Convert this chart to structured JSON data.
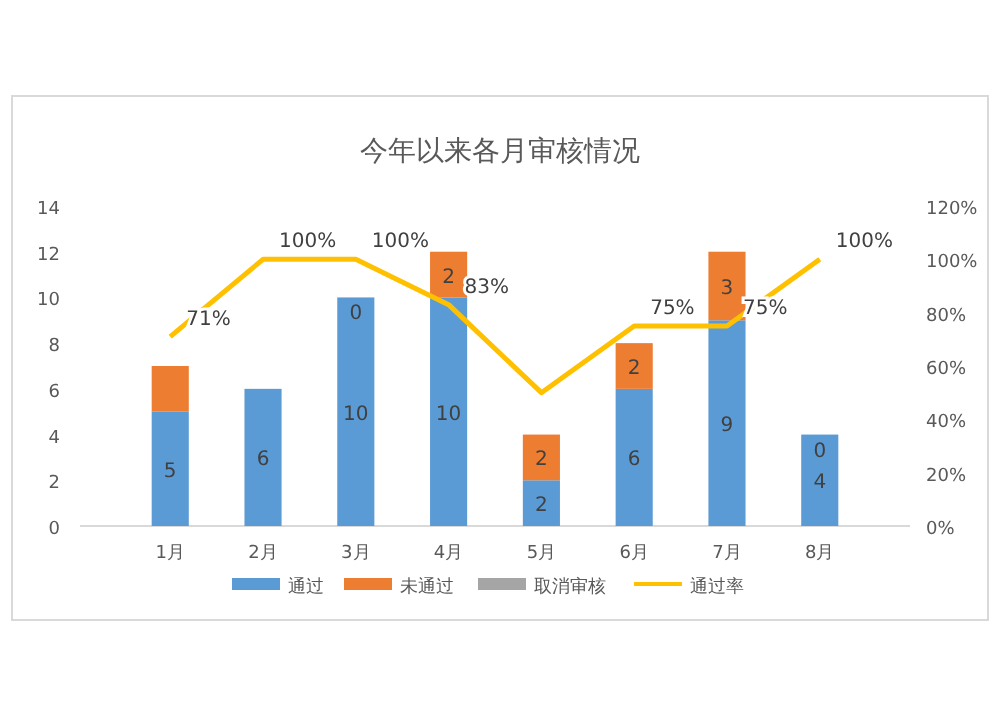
{
  "chart_data": {
    "type": "bar",
    "title": "今年以来各月审核情况",
    "stacked": true,
    "categories": [
      "1月",
      "2月",
      "3月",
      "4月",
      "5月",
      "6月",
      "7月",
      "8月"
    ],
    "ylim": [
      0,
      14
    ],
    "yticks": [
      0,
      2,
      4,
      6,
      8,
      10,
      12,
      14
    ],
    "y2lim": [
      0,
      120
    ],
    "y2ticks": [
      {
        "value": 0,
        "label": "0%"
      },
      {
        "value": 20,
        "label": "20%"
      },
      {
        "value": 40,
        "label": "40%"
      },
      {
        "value": 60,
        "label": "60%"
      },
      {
        "value": 80,
        "label": "80%"
      },
      {
        "value": 100,
        "label": "100%"
      },
      {
        "value": 120,
        "label": "120%"
      }
    ],
    "grid": false,
    "legend": "bottom",
    "series": [
      {
        "name": "通过",
        "color": "#5b9bd5",
        "values": [
          5,
          6,
          10,
          10,
          2,
          6,
          9,
          4
        ],
        "value_labels": [
          "5",
          "6",
          "10",
          "10",
          "2",
          "6",
          "9",
          "4"
        ]
      },
      {
        "name": "未通过",
        "color": "#ed7d31",
        "values": [
          2,
          0,
          0,
          2,
          2,
          2,
          3,
          0
        ],
        "value_labels": [
          null,
          null,
          "0",
          "2",
          "2",
          "2",
          "3",
          "0"
        ]
      },
      {
        "name": "取消审核",
        "color": "#a5a5a5",
        "values": [
          0,
          0,
          0,
          0,
          0,
          0,
          0,
          0
        ]
      },
      {
        "name": "通过率",
        "type": "line",
        "axis": "y2",
        "color": "#ffc000",
        "values": [
          71,
          100,
          100,
          83,
          50,
          75,
          75,
          100
        ],
        "value_labels": [
          "71%",
          "100%",
          "100%",
          "83%",
          null,
          "75%",
          "75%",
          "100%"
        ]
      }
    ]
  }
}
